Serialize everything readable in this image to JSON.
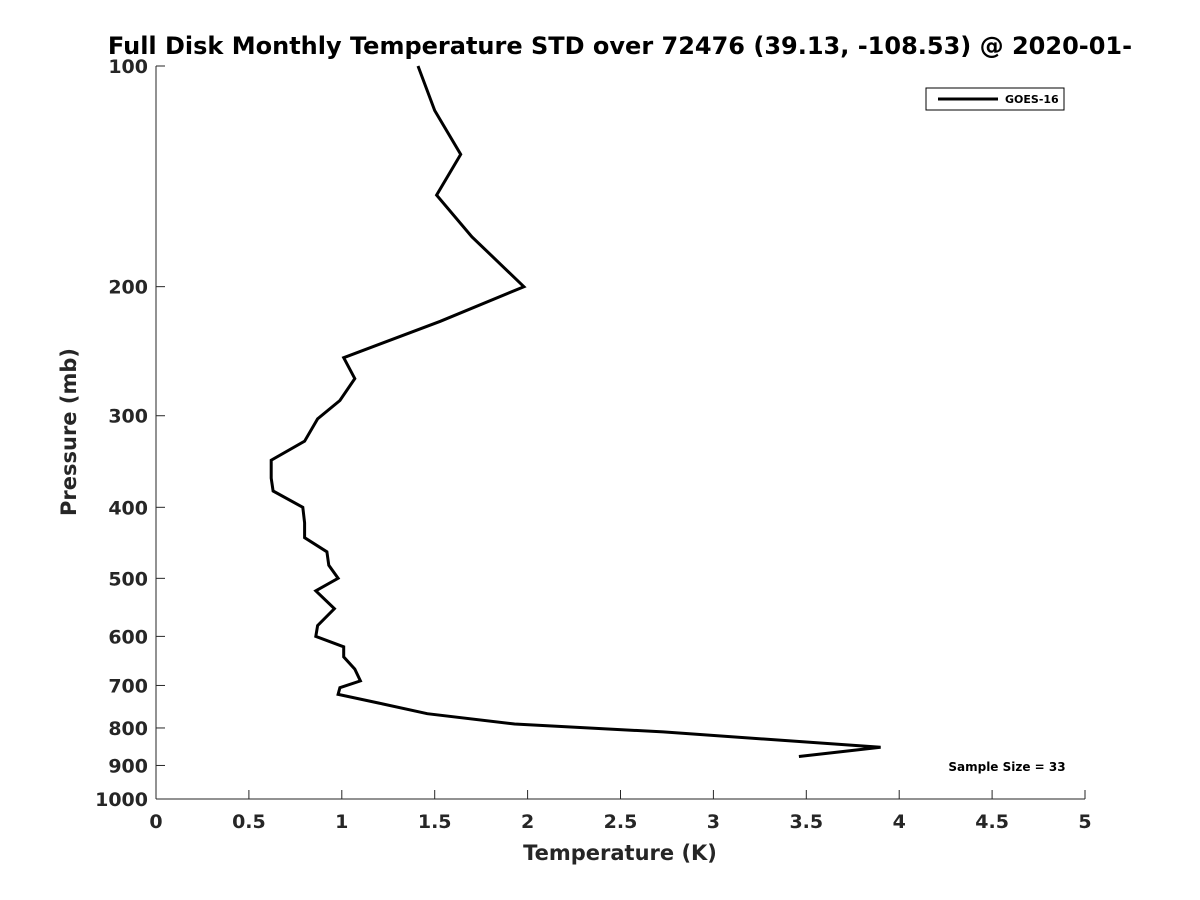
{
  "chart_data": {
    "type": "line",
    "title": "Full Disk Monthly Temperature STD over 72476 (39.13, -108.53) @ 2020-01-",
    "xlabel": "Temperature (K)",
    "ylabel": "Pressure (mb)",
    "xlim": [
      0,
      5
    ],
    "ylim": [
      100,
      1000
    ],
    "y_scale": "log",
    "y_reversed": true,
    "x_ticks": [
      0,
      0.5,
      1,
      1.5,
      2,
      2.5,
      3,
      3.5,
      4,
      4.5,
      5
    ],
    "x_tick_labels": [
      "0",
      "0.5",
      "1",
      "1.5",
      "2",
      "2.5",
      "3",
      "3.5",
      "4",
      "4.5",
      "5"
    ],
    "y_ticks": [
      100,
      200,
      300,
      400,
      500,
      600,
      700,
      800,
      900,
      1000
    ],
    "y_tick_labels": [
      "100",
      "200",
      "300",
      "400",
      "500",
      "600",
      "700",
      "800",
      "900",
      "1000"
    ],
    "grid": false,
    "legend_position": "top-right",
    "line_color": "#000000",
    "series": [
      {
        "name": "GOES-16",
        "x": [
          1.41,
          1.5,
          1.64,
          1.51,
          1.7,
          1.98,
          1.53,
          1.01,
          1.07,
          0.99,
          0.87,
          0.8,
          0.62,
          0.62,
          0.63,
          0.79,
          0.8,
          0.8,
          0.92,
          0.93,
          0.98,
          0.86,
          0.96,
          0.87,
          0.86,
          1.01,
          1.01,
          1.07,
          1.1,
          0.99,
          0.98,
          1.2,
          1.46,
          1.93,
          2.73,
          3.9,
          3.46
        ],
        "y": [
          100,
          115,
          132,
          150,
          171,
          200,
          223,
          250,
          267,
          286,
          303,
          325,
          345,
          365,
          380,
          400,
          420,
          440,
          460,
          480,
          500,
          520,
          550,
          580,
          600,
          620,
          640,
          665,
          690,
          705,
          720,
          740,
          765,
          790,
          810,
          850,
          875
        ]
      }
    ],
    "annotations": [
      "Sample Size = 33"
    ]
  }
}
